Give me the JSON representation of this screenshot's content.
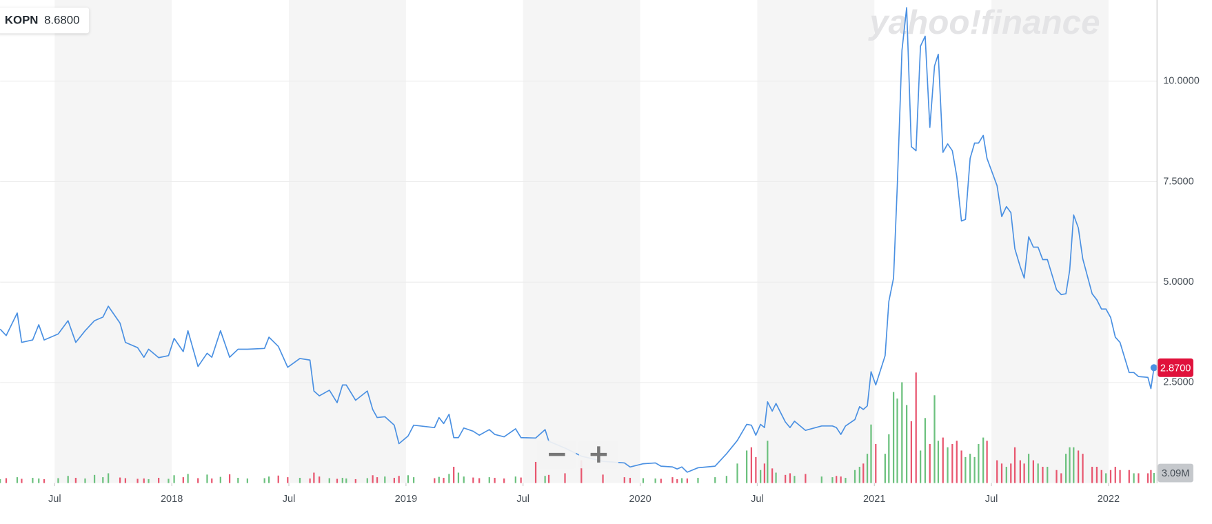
{
  "chart_data": {
    "type": "line",
    "watermark": "yahoo!finance",
    "header_value": {
      "value": 8.68,
      "label": "8.6800"
    },
    "last_price": {
      "value": 2.87,
      "label": "2.8700"
    },
    "last_volume": {
      "value": 3.09,
      "label": "3.09M"
    },
    "x": [
      2017.267,
      2017.293,
      2017.34,
      2017.359,
      2017.406,
      2017.432,
      2017.455,
      2017.515,
      2017.557,
      2017.59,
      2017.63,
      2017.67,
      2017.706,
      2017.729,
      2017.779,
      2017.802,
      2017.854,
      2017.881,
      2017.901,
      2017.944,
      2017.986,
      2018.01,
      2018.049,
      2018.069,
      2018.112,
      2018.151,
      2018.171,
      2018.208,
      2018.247,
      2018.283,
      2018.323,
      2018.396,
      2018.415,
      2018.455,
      2018.495,
      2018.547,
      2018.59,
      2018.607,
      2018.63,
      2018.673,
      2018.706,
      2018.729,
      2018.745,
      2018.785,
      2018.835,
      2018.858,
      2018.877,
      2018.91,
      2018.95,
      2018.97,
      2019.009,
      2019.033,
      2019.122,
      2019.141,
      2019.161,
      2019.184,
      2019.204,
      2019.224,
      2019.247,
      2019.287,
      2019.313,
      2019.356,
      2019.379,
      2019.419,
      2019.468,
      2019.491,
      2019.554,
      2019.594,
      2019.61,
      2019.679,
      2019.749,
      2019.841,
      2019.933,
      2019.957,
      2020.013,
      2020.065,
      2020.089,
      2020.138,
      2020.158,
      2020.178,
      2020.201,
      2020.247,
      2020.32,
      2020.369,
      2020.415,
      2020.455,
      2020.475,
      2020.494,
      2020.514,
      2020.531,
      2020.544,
      2020.564,
      2020.58,
      2020.62,
      2020.64,
      2020.659,
      2020.706,
      2020.775,
      2020.821,
      2020.838,
      2020.857,
      2020.877,
      2020.917,
      2020.937,
      2020.953,
      2020.97,
      2020.986,
      2021.006,
      2021.046,
      2021.062,
      2021.082,
      2021.098,
      2021.118,
      2021.138,
      2021.158,
      2021.178,
      2021.197,
      2021.217,
      2021.237,
      2021.257,
      2021.273,
      2021.293,
      2021.313,
      2021.333,
      2021.352,
      2021.372,
      2021.389,
      2021.409,
      2021.428,
      2021.445,
      2021.465,
      2021.481,
      2021.524,
      2021.544,
      2021.564,
      2021.583,
      2021.6,
      2021.623,
      2021.64,
      2021.659,
      2021.679,
      2021.699,
      2021.719,
      2021.739,
      2021.778,
      2021.798,
      2021.818,
      2021.834,
      2021.851,
      2021.871,
      2021.89,
      2021.93,
      2021.95,
      2021.97,
      2021.989,
      2022.009,
      2022.029,
      2022.049,
      2022.088,
      2022.108,
      2022.128,
      2022.168,
      2022.181,
      2022.194
    ],
    "series": [
      {
        "name": "KOPN",
        "color": "#4a90e2",
        "values": [
          3.83,
          3.67,
          4.23,
          3.5,
          3.56,
          3.94,
          3.56,
          3.71,
          4.04,
          3.5,
          3.79,
          4.04,
          4.13,
          4.4,
          3.98,
          3.5,
          3.37,
          3.13,
          3.33,
          3.12,
          3.17,
          3.6,
          3.27,
          3.79,
          2.9,
          3.23,
          3.13,
          3.79,
          3.13,
          3.33,
          3.33,
          3.35,
          3.63,
          3.4,
          2.88,
          3.1,
          3.06,
          2.29,
          2.17,
          2.31,
          2.0,
          2.44,
          2.44,
          2.06,
          2.29,
          1.83,
          1.63,
          1.65,
          1.44,
          0.98,
          1.17,
          1.44,
          1.38,
          1.63,
          1.48,
          1.71,
          1.13,
          1.13,
          1.37,
          1.29,
          1.19,
          1.33,
          1.21,
          1.15,
          1.35,
          1.13,
          1.12,
          1.33,
          1.04,
          0.87,
          0.67,
          0.54,
          0.5,
          0.4,
          0.48,
          0.5,
          0.42,
          0.4,
          0.35,
          0.4,
          0.27,
          0.38,
          0.42,
          0.73,
          1.06,
          1.46,
          1.44,
          1.19,
          1.46,
          1.38,
          2.02,
          1.79,
          1.98,
          1.52,
          1.38,
          1.54,
          1.31,
          1.42,
          1.42,
          1.38,
          1.21,
          1.42,
          1.58,
          1.9,
          1.83,
          1.92,
          2.77,
          2.44,
          3.17,
          4.52,
          5.1,
          7.4,
          10.77,
          11.83,
          8.37,
          8.27,
          10.87,
          11.12,
          8.85,
          10.38,
          10.67,
          8.23,
          8.44,
          8.27,
          7.63,
          6.52,
          6.56,
          8.08,
          8.46,
          8.46,
          8.65,
          8.08,
          7.4,
          6.63,
          6.88,
          6.73,
          5.83,
          5.38,
          5.1,
          6.13,
          5.87,
          5.87,
          5.56,
          5.56,
          4.81,
          4.69,
          4.71,
          5.29,
          6.67,
          6.35,
          5.58,
          4.71,
          4.56,
          4.33,
          4.33,
          4.12,
          3.63,
          3.5,
          2.75,
          2.75,
          2.65,
          2.63,
          2.35,
          2.87
        ]
      },
      {
        "type": "bar",
        "axis": "y2",
        "up_color": "#6cc17e",
        "down_color": "#e8566f",
        "values": [
          1.2,
          1.5,
          1.8,
          1.3,
          1.6,
          1.4,
          1.2,
          1.5,
          2.2,
          1.6,
          1.4,
          2.5,
          1.8,
          3,
          1.7,
          1.5,
          1.3,
          1.4,
          1.2,
          1.6,
          1.3,
          2.4,
          1.8,
          2.8,
          1.5,
          2.6,
          1.4,
          1.9,
          2.7,
          1.6,
          1.4,
          1.5,
          2,
          2.3,
          1.8,
          1.6,
          1.4,
          3.2,
          2,
          1.5,
          1.3,
          1.6,
          1.4,
          1.2,
          1.5,
          2.4,
          1.8,
          2,
          1.6,
          2.2,
          2.4,
          1.8,
          1.5,
          1.9,
          1.6,
          2.8,
          5,
          3.2,
          2,
          1.7,
          1.5,
          1.8,
          1.6,
          1.4,
          2,
          1.7,
          6.5,
          2.2,
          2.5,
          3,
          7,
          2.6,
          1.8,
          1.6,
          1.5,
          1.4,
          1.3,
          1.8,
          1.2,
          1.5,
          1.4,
          1.6,
          1.8,
          2.2,
          6,
          10,
          11,
          8,
          4,
          6,
          13,
          4.5,
          3.2,
          2.5,
          3,
          2.2,
          2.8,
          2,
          1.8,
          2.2,
          2,
          1.6,
          4,
          5,
          6,
          9,
          18,
          12,
          9,
          15,
          28,
          26,
          31,
          24,
          19,
          34,
          10,
          20,
          12,
          27,
          13,
          14,
          11,
          12,
          13,
          10,
          8,
          9,
          8,
          12,
          14,
          13,
          7,
          6,
          5,
          6,
          11,
          7,
          6,
          9,
          7,
          6,
          5,
          5,
          4,
          3,
          9,
          11,
          11,
          10,
          9,
          5,
          5,
          4,
          3,
          4,
          5,
          4,
          4,
          3,
          3,
          3,
          4,
          3.09
        ]
      }
    ],
    "xlim": [
      2017.267,
      2022.207
    ],
    "xticks": [
      {
        "value": 2017.5,
        "label": "Jul"
      },
      2018,
      {
        "value": 2018.5,
        "label": "Jul"
      },
      2019,
      {
        "value": 2019.5,
        "label": "Jul"
      },
      2020,
      {
        "value": 2020.5,
        "label": "Jul"
      },
      2021,
      {
        "value": 2021.5,
        "label": "Jul"
      },
      2022
    ],
    "ylim": [
      0,
      12.02
    ],
    "yticks": [
      {
        "value": 2.5,
        "label": "2.5000"
      },
      {
        "value": 5,
        "label": "5.0000"
      },
      {
        "value": 7.5,
        "label": "7.5000"
      },
      {
        "value": 10,
        "label": "10.0000"
      }
    ],
    "y2lim": [
      0,
      148.6
    ],
    "grid": true,
    "shade_color": "#f5f5f5",
    "last_price_color": "#e0113b",
    "last_volume_color": "#c5c8cc"
  }
}
